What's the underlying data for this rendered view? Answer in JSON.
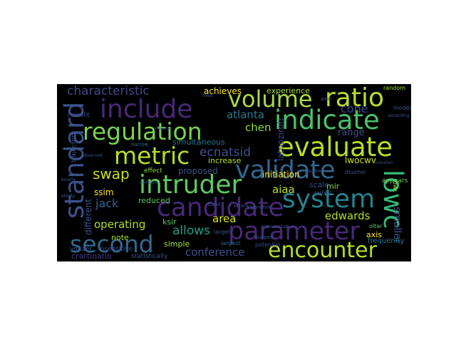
{
  "figure": {
    "type": "word cloud",
    "background": "#000000",
    "colormap": [
      "#440154",
      "#3b528b",
      "#21908c",
      "#5dc863",
      "#fde725"
    ]
  },
  "words": [
    {
      "text": "volume",
      "color": "#a8d84a"
    },
    {
      "text": "ratio",
      "color": "#b9de28"
    },
    {
      "text": "include",
      "color": "#482878"
    },
    {
      "text": "indicate",
      "color": "#4ac16d"
    },
    {
      "text": "regulation",
      "color": "#7ad151"
    },
    {
      "text": "evaluate",
      "color": "#b5de2b"
    },
    {
      "text": "metric",
      "color": "#b5de2b"
    },
    {
      "text": "validate",
      "color": "#31688e"
    },
    {
      "text": "standard",
      "color": "#3b528b"
    },
    {
      "text": "intruder",
      "color": "#5ec962"
    },
    {
      "text": "system",
      "color": "#26828e"
    },
    {
      "text": "candidate",
      "color": "#482878"
    },
    {
      "text": "lowc",
      "color": "#35b779"
    },
    {
      "text": "parameter",
      "color": "#482878"
    },
    {
      "text": "second",
      "color": "#31688e"
    },
    {
      "text": "encounter",
      "color": "#b5de2b"
    },
    {
      "text": "characteristic",
      "color": "#3e4989"
    },
    {
      "text": "achieves",
      "color": "#fde725"
    },
    {
      "text": "experience",
      "color": "#a5db36"
    },
    {
      "text": "cone",
      "color": "#3e4989"
    },
    {
      "text": "atlanta",
      "color": "#2a788e"
    },
    {
      "text": "chen",
      "color": "#90d743"
    },
    {
      "text": "latnoziroh",
      "color": "#3e4a89"
    },
    {
      "text": "range",
      "color": "#3b528b"
    },
    {
      "text": "ecnatsid",
      "color": "#3b528b"
    },
    {
      "text": "simultaneous",
      "color": "#2c728e"
    },
    {
      "text": "swap",
      "color": "#c8e020"
    },
    {
      "text": "proposed",
      "color": "#3b528b"
    },
    {
      "text": "increase",
      "color": "#b5de2b"
    },
    {
      "text": "lwocwv",
      "color": "#c8e020"
    },
    {
      "text": "ssim",
      "color": "#fde725"
    },
    {
      "text": "aiaa",
      "color": "#bddf26"
    },
    {
      "text": "scale",
      "color": "#3e4989"
    },
    {
      "text": "mir",
      "color": "#7ad151"
    },
    {
      "text": "jack",
      "color": "#31688e"
    },
    {
      "text": "reduced",
      "color": "#5ec962"
    },
    {
      "text": "edwards",
      "color": "#b5de2b"
    },
    {
      "text": "smaller",
      "color": "#3b528b"
    },
    {
      "text": "operating",
      "color": "#b5de2b"
    },
    {
      "text": "area",
      "color": "#d8e219"
    },
    {
      "text": "ksir",
      "color": "#5ec962"
    },
    {
      "text": "allows",
      "color": "#1f9e89"
    },
    {
      "text": "note",
      "color": "#a5db36"
    },
    {
      "text": "simple",
      "color": "#a5db36"
    },
    {
      "text": "conference",
      "color": "#3b528b"
    },
    {
      "text": "axis",
      "color": "#fde725"
    },
    {
      "text": "frequently",
      "color": "#2c728e"
    },
    {
      "text": "crartioatio",
      "color": "#443983"
    },
    {
      "text": "initiation",
      "color": "#fde725"
    },
    {
      "text": "cwol",
      "color": "#3e4989"
    },
    {
      "text": "different",
      "color": "#3b528b"
    },
    {
      "text": "vitcaer",
      "color": "#3b528b"
    },
    {
      "text": "insensitive",
      "color": "#3b528b"
    },
    {
      "text": "appears",
      "color": "#6ece58"
    },
    {
      "text": "potential",
      "color": "#3e4989"
    },
    {
      "text": "largest",
      "color": "#31688e"
    },
    {
      "text": "statistically",
      "color": "#3b528b"
    },
    {
      "text": "effect",
      "color": "#90d743"
    },
    {
      "text": "daa",
      "color": "#a5db36"
    },
    {
      "text": "cwoolit",
      "color": "#3e4989"
    },
    {
      "text": "trajectory",
      "color": "#3b528b"
    },
    {
      "text": "random",
      "color": "#a5db36"
    },
    {
      "text": "model",
      "color": "#3b528b"
    },
    {
      "text": "dwc",
      "color": "#a5db36"
    },
    {
      "text": "oltar",
      "color": "#5ec962"
    },
    {
      "text": "largely",
      "color": "#3b528b"
    },
    {
      "text": "support",
      "color": "#3b528b"
    },
    {
      "text": "narrow",
      "color": "#31688e"
    },
    {
      "text": "study",
      "color": "#3b528b"
    },
    {
      "text": "observed",
      "color": "#3b528b"
    },
    {
      "text": "dsumei",
      "color": "#3b528b"
    },
    {
      "text": "algorithm",
      "color": "#3b528b"
    },
    {
      "text": "representative",
      "color": "#3b528b"
    },
    {
      "text": "skisrir",
      "color": "#3b528b"
    },
    {
      "text": "perfect",
      "color": "#3b528b"
    },
    {
      "text": "ascending",
      "color": "#3b528b"
    },
    {
      "text": "band",
      "color": "#3b528b"
    },
    {
      "text": "amh",
      "color": "#3b528b"
    },
    {
      "text": "likewise",
      "color": "#3b528b"
    },
    {
      "text": "flexible",
      "color": "#3b528b"
    },
    {
      "text": "evolution",
      "color": "#3b528b"
    },
    {
      "text": "collision",
      "color": "#3b528b"
    },
    {
      "text": "bowtie",
      "color": "#3b528b"
    },
    {
      "text": "fixed",
      "color": "#3b528b"
    }
  ]
}
